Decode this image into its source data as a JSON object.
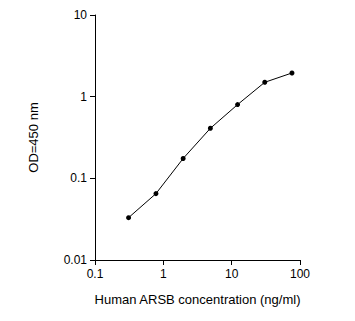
{
  "chart_data": {
    "type": "line",
    "x_label": "Human ARSB concentration (ng/ml)",
    "y_label": "OD=450 nm",
    "x": [
      0.31,
      0.78,
      1.95,
      4.88,
      12.2,
      30.5,
      76.3
    ],
    "values": [
      0.033,
      0.065,
      0.175,
      0.41,
      0.8,
      1.5,
      1.95
    ],
    "color": "#000000",
    "marker": "circle",
    "line_style": "solid",
    "log": true,
    "grid": false,
    "xlim": [
      0.1,
      100
    ],
    "xticks": [
      0.1,
      1,
      10,
      100
    ],
    "ylim": [
      0.01,
      10
    ],
    "yticks": [
      0.01,
      0.1,
      1,
      10
    ]
  }
}
